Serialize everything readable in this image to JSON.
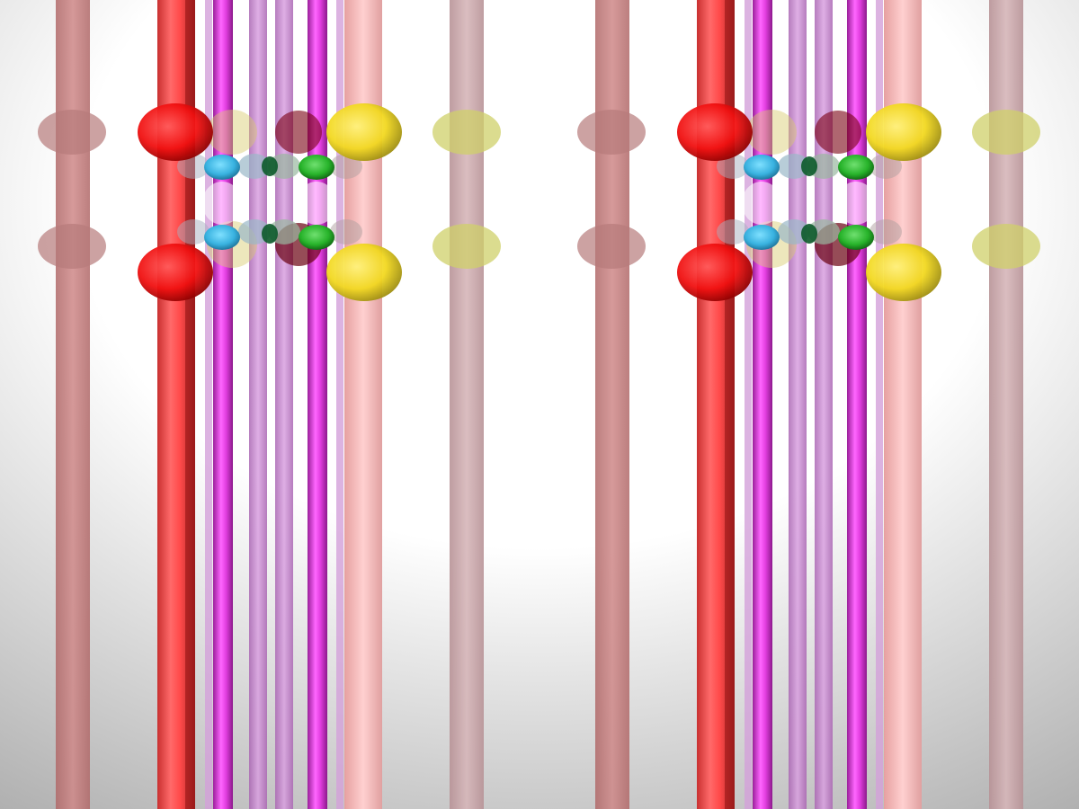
{
  "scene": {
    "subject": "stereo-pair-3d-render",
    "colors": {
      "background_light": "#ffffff",
      "background_dark": "#a8a8a8",
      "red": "#ff3b3b",
      "magenta": "#e23ee0",
      "violet": "#c77fd0",
      "pink": "#f6b3b3",
      "dusty_red": "#c07474",
      "dusty_pink": "#c5a2a6",
      "sphere_red": "#ff1a1a",
      "sphere_yellow": "#f2e43a",
      "sphere_olive": "#cfd06a",
      "sphere_dusty": "#b77a7a",
      "sphere_cyan": "#39c2e6",
      "sphere_green": "#27b32a"
    }
  }
}
